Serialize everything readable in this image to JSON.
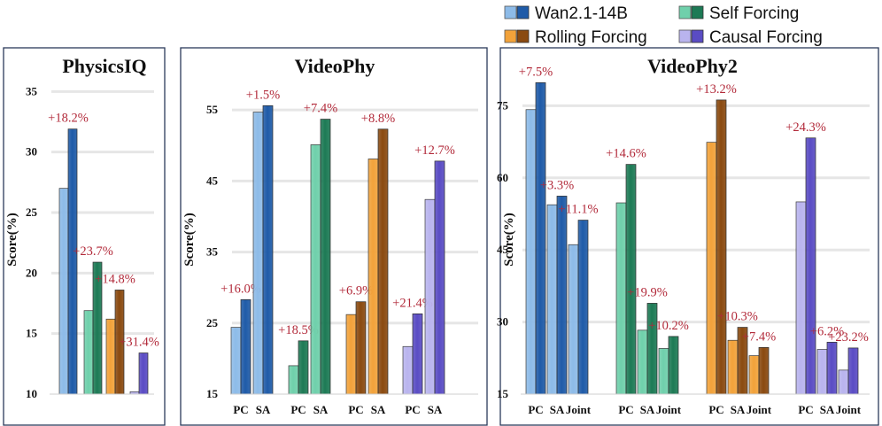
{
  "legend": {
    "placement": "top-right",
    "items": [
      {
        "label": "Wan2.1-14B",
        "light": "#8dbbe8",
        "dark": "#1f5ba8"
      },
      {
        "label": "Self Forcing",
        "light": "#6fd0ab",
        "dark": "#1d7a55"
      },
      {
        "label": "Rolling Forcing",
        "light": "#f2a23a",
        "dark": "#8a4a10"
      },
      {
        "label": "Causal Forcing",
        "light": "#b9b4ee",
        "dark": "#5a4cc4"
      }
    ]
  },
  "chart_data": [
    {
      "type": "bar",
      "title": "PhysicsIQ",
      "ylabel": "Score(%)",
      "ylim": [
        10,
        37
      ],
      "yticks": [
        10,
        15,
        20,
        25,
        30,
        35
      ],
      "grid": true,
      "metrics": [
        ""
      ],
      "groups": [
        {
          "model": "Wan2.1-14B",
          "base": [
            27.0
          ],
          "improved": [
            31.9
          ],
          "gain": [
            "+18.2%"
          ]
        },
        {
          "model": "Self Forcing",
          "base": [
            16.9
          ],
          "improved": [
            20.9
          ],
          "gain": [
            "+23.7%"
          ]
        },
        {
          "model": "Rolling Forcing",
          "base": [
            16.2
          ],
          "improved": [
            18.6
          ],
          "gain": [
            "+14.8%"
          ]
        },
        {
          "model": "Causal Forcing",
          "base": [
            10.2
          ],
          "improved": [
            13.4
          ],
          "gain": [
            "+31.4%"
          ]
        }
      ]
    },
    {
      "type": "bar",
      "title": "VideoPhy",
      "ylabel": "Score(%)",
      "ylim": [
        15,
        61
      ],
      "yticks": [
        15,
        25,
        35,
        45,
        55
      ],
      "grid": true,
      "metrics": [
        "PC",
        "SA"
      ],
      "groups": [
        {
          "model": "Wan2.1-14B",
          "base": [
            24.4,
            54.7
          ],
          "improved": [
            28.3,
            55.6
          ],
          "gain": [
            "+16.0%",
            "+1.5%"
          ]
        },
        {
          "model": "Self Forcing",
          "base": [
            19.0,
            50.1
          ],
          "improved": [
            22.5,
            53.7
          ],
          "gain": [
            "+18.5%",
            "+7.4%"
          ]
        },
        {
          "model": "Rolling Forcing",
          "base": [
            26.2,
            48.1
          ],
          "improved": [
            28.0,
            52.3
          ],
          "gain": [
            "+6.9%",
            "+8.8%"
          ]
        },
        {
          "model": "Causal Forcing",
          "base": [
            21.7,
            42.4
          ],
          "improved": [
            26.3,
            47.8
          ],
          "gain": [
            "+21.4%",
            "+12.7%"
          ]
        }
      ]
    },
    {
      "type": "bar",
      "title": "VideoPhy2",
      "ylabel": "Score(%)",
      "ylim": [
        15,
        83
      ],
      "yticks": [
        15,
        30,
        45,
        60,
        75
      ],
      "grid": true,
      "metrics": [
        "PC",
        "SA",
        "Joint"
      ],
      "groups": [
        {
          "model": "Wan2.1-14B",
          "base": [
            74.2,
            54.4,
            46.1
          ],
          "improved": [
            79.8,
            56.2,
            51.2
          ],
          "gain": [
            "+7.5%",
            "+3.3%",
            "+11.1%"
          ]
        },
        {
          "model": "Self Forcing",
          "base": [
            54.8,
            28.3,
            24.5
          ],
          "improved": [
            62.8,
            33.9,
            27.0
          ],
          "gain": [
            "+14.6%",
            "+19.9%",
            "+10.2%"
          ]
        },
        {
          "model": "Rolling Forcing",
          "base": [
            67.4,
            26.2,
            23.0
          ],
          "improved": [
            76.2,
            28.9,
            24.7
          ],
          "gain": [
            "+13.2%",
            "+10.3%",
            "+7.4%"
          ]
        },
        {
          "model": "Causal Forcing",
          "base": [
            55.0,
            24.3,
            20.0
          ],
          "improved": [
            68.3,
            25.8,
            24.6
          ],
          "gain": [
            "+24.3%",
            "+6.2%",
            "+23.2%"
          ]
        }
      ]
    }
  ]
}
